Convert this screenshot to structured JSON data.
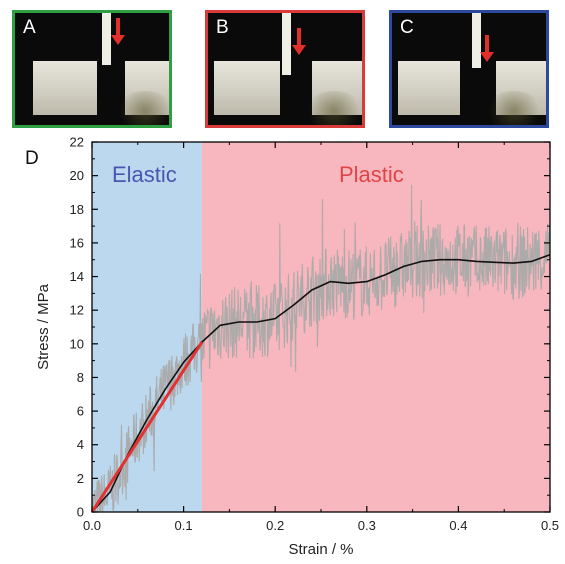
{
  "panels": [
    {
      "label": "A",
      "border_color": "#2ea043"
    },
    {
      "label": "B",
      "border_color": "#d93a3a"
    },
    {
      "label": "C",
      "border_color": "#2b4a9e"
    }
  ],
  "chart_label": "D",
  "chart_data": {
    "type": "line",
    "xlabel": "Strain / %",
    "ylabel": "Stress / MPa",
    "xlim": [
      0.0,
      0.5
    ],
    "ylim": [
      0,
      22
    ],
    "xticks": [
      "0.0",
      "0.1",
      "0.2",
      "0.3",
      "0.4",
      "0.5"
    ],
    "yticks": [
      "0",
      "2",
      "4",
      "6",
      "8",
      "10",
      "12",
      "14",
      "16",
      "18",
      "20",
      "22"
    ],
    "regions": [
      {
        "label": "Elastic",
        "x_range": [
          0.0,
          0.12
        ],
        "fill": "#bcd8ee",
        "text_color": "#4a55b0"
      },
      {
        "label": "Plastic",
        "x_range": [
          0.12,
          0.5
        ],
        "fill": "#f8b7be",
        "text_color": "#e04545"
      }
    ],
    "series": [
      {
        "role": "raw data",
        "color": "#a9a9a9",
        "amplitude_mpa": 2.2
      },
      {
        "role": "smoothed fit",
        "color": "#111111",
        "x": [
          0.0,
          0.02,
          0.04,
          0.06,
          0.08,
          0.1,
          0.12,
          0.14,
          0.16,
          0.18,
          0.2,
          0.22,
          0.24,
          0.26,
          0.28,
          0.3,
          0.32,
          0.34,
          0.36,
          0.38,
          0.4,
          0.42,
          0.44,
          0.46,
          0.48,
          0.5
        ],
        "y": [
          0.0,
          1.2,
          3.5,
          5.5,
          7.3,
          8.9,
          10.1,
          11.1,
          11.3,
          11.3,
          11.5,
          12.3,
          13.2,
          13.7,
          13.6,
          13.7,
          14.1,
          14.6,
          14.9,
          15.0,
          15.0,
          14.9,
          14.85,
          14.8,
          14.9,
          15.3
        ]
      },
      {
        "role": "linear elastic fit",
        "color": "#e53030",
        "x": [
          0.0,
          0.12
        ],
        "y": [
          0.0,
          10.1
        ]
      }
    ]
  }
}
